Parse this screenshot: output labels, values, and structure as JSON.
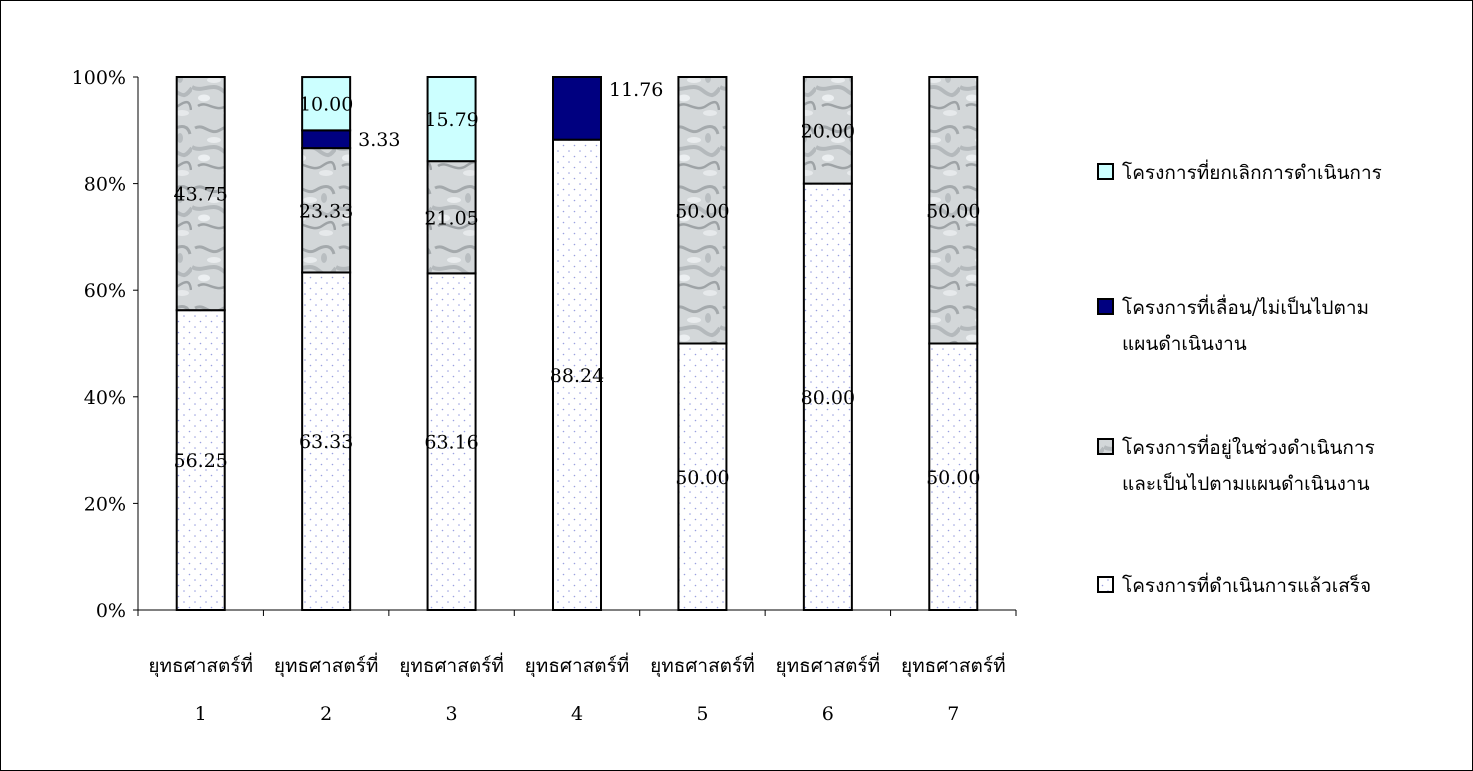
{
  "chart_data": {
    "type": "bar",
    "stacked": true,
    "percent_stacked": true,
    "ylim": [
      0,
      100
    ],
    "yticks": [
      "0%",
      "20%",
      "40%",
      "60%",
      "80%",
      "100%"
    ],
    "categories": [
      [
        "ยุทธศาสตร์ที่",
        "1"
      ],
      [
        "ยุทธศาสตร์ที่",
        "2"
      ],
      [
        "ยุทธศาสตร์ที่",
        "3"
      ],
      [
        "ยุทธศาสตร์ที่",
        "4"
      ],
      [
        "ยุทธศาสตร์ที่",
        "5"
      ],
      [
        "ยุทธศาสตร์ที่",
        "6"
      ],
      [
        "ยุทธศาสตร์ที่",
        "7"
      ]
    ],
    "series": [
      {
        "name": "โครงการที่ดำเนินการแล้วเสร็จ",
        "color": "#ffffff",
        "pattern": "dots",
        "values": [
          56.25,
          63.33,
          63.16,
          88.24,
          50.0,
          80.0,
          50.0
        ],
        "labels": [
          "56.25",
          "63.33",
          "63.16",
          "88.24",
          "50.00",
          "80.00",
          "50.00"
        ]
      },
      {
        "name": "โครงการที่อยู่ในช่วงดำเนินการและเป็นไปตามแผนดำเนินงาน",
        "color": "#cfd3d5",
        "pattern": "marble",
        "values": [
          43.75,
          23.33,
          21.05,
          0,
          50.0,
          20.0,
          50.0
        ],
        "labels": [
          "43.75",
          "23.33",
          "21.05",
          "",
          "50.00",
          "20.00",
          "50.00"
        ]
      },
      {
        "name": "โครงการที่เลื่อน/ไม่เป็นไปตามแผนดำเนินงาน",
        "color": "#000080",
        "pattern": "solid",
        "values": [
          0,
          3.33,
          0,
          11.76,
          0,
          0,
          0
        ],
        "labels": [
          "",
          "3.33",
          "",
          "11.76",
          "",
          "",
          ""
        ]
      },
      {
        "name": "โครงการที่ยกเลิกการดำเนินการ",
        "color": "#ccffff",
        "pattern": "solid",
        "values": [
          0,
          10.0,
          15.79,
          0,
          0,
          0,
          0
        ],
        "labels": [
          "",
          "10.00",
          "15.79",
          "",
          "",
          "",
          ""
        ]
      }
    ],
    "legend": {
      "position": "right",
      "items": [
        {
          "lines": [
            "โครงการที่ยกเลิกการดำเนินการ"
          ],
          "color": "#ccffff",
          "pattern": "solid"
        },
        {
          "lines": [
            "โครงการที่เลื่อน/ไม่เป็นไปตาม",
            "แผนดำเนินงาน"
          ],
          "color": "#000080",
          "pattern": "solid"
        },
        {
          "lines": [
            "โครงการที่อยู่ในช่วงดำเนินการ",
            "และเป็นไปตามแผนดำเนินงาน"
          ],
          "color": "#cfd3d5",
          "pattern": "marble"
        },
        {
          "lines": [
            "โครงการที่ดำเนินการแล้วเสร็จ"
          ],
          "color": "#ffffff",
          "pattern": "dots"
        }
      ]
    },
    "grid": false
  }
}
